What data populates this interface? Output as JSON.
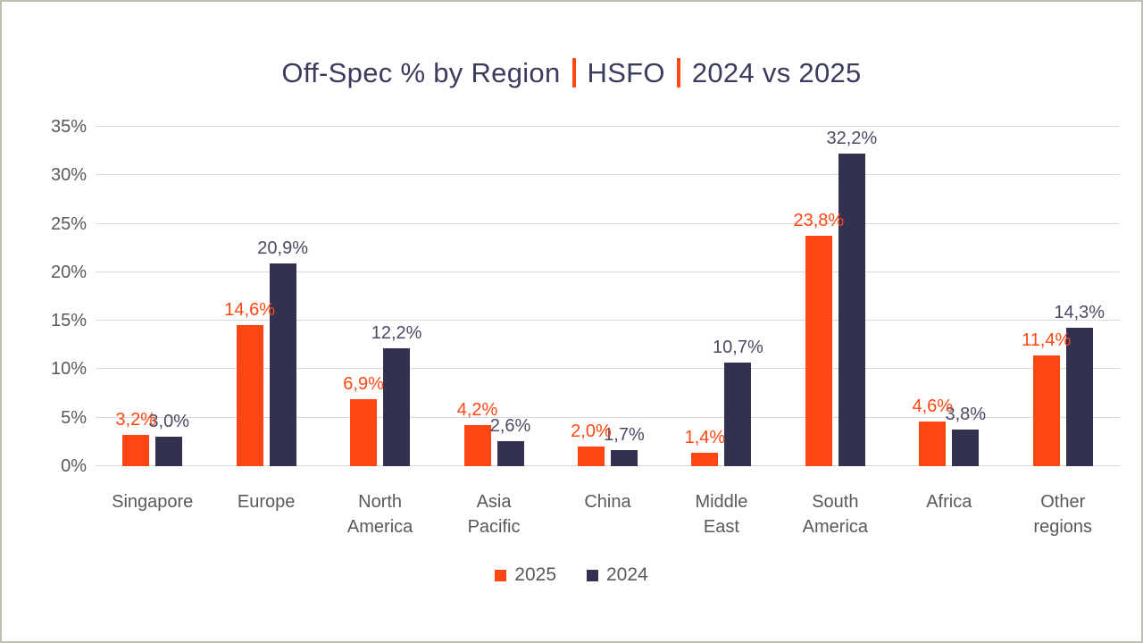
{
  "title": {
    "segments": [
      "Off-Spec % by Region",
      "HSFO",
      "2024 vs 2025"
    ],
    "separator_color": "#ff4713",
    "text_color": "#3b3b5e"
  },
  "chart_data": {
    "type": "bar",
    "title": "Off-Spec % by Region | HSFO | 2024 vs 2025",
    "categories": [
      "Singapore",
      "Europe",
      "North\nAmerica",
      "Asia\nPacific",
      "China",
      "Middle\nEast",
      "South\nAmerica",
      "Africa",
      "Other\nregions"
    ],
    "series": [
      {
        "name": "2025",
        "color": "#ff4713",
        "label_color": "#ff4713",
        "values": [
          3.2,
          14.6,
          6.9,
          4.2,
          2.0,
          1.4,
          23.8,
          4.6,
          11.4
        ],
        "labels": [
          "3,2%",
          "14,6%",
          "6,9%",
          "4,2%",
          "2,0%",
          "1,4%",
          "23,8%",
          "4,6%",
          "11,4%"
        ]
      },
      {
        "name": "2024",
        "color": "#333150",
        "label_color": "#4a4a64",
        "values": [
          3.0,
          20.9,
          12.2,
          2.6,
          1.7,
          10.7,
          32.2,
          3.8,
          14.3
        ],
        "labels": [
          "3,0%",
          "20,9%",
          "12,2%",
          "2,6%",
          "1,7%",
          "10,7%",
          "32,2%",
          "3,8%",
          "14,3%"
        ]
      }
    ],
    "ylim": [
      0,
      35
    ],
    "yticks": [
      "0%",
      "5%",
      "10%",
      "15%",
      "20%",
      "25%",
      "30%",
      "35%"
    ],
    "grid": true,
    "legend_position": "bottom",
    "xlabel": "",
    "ylabel": ""
  }
}
